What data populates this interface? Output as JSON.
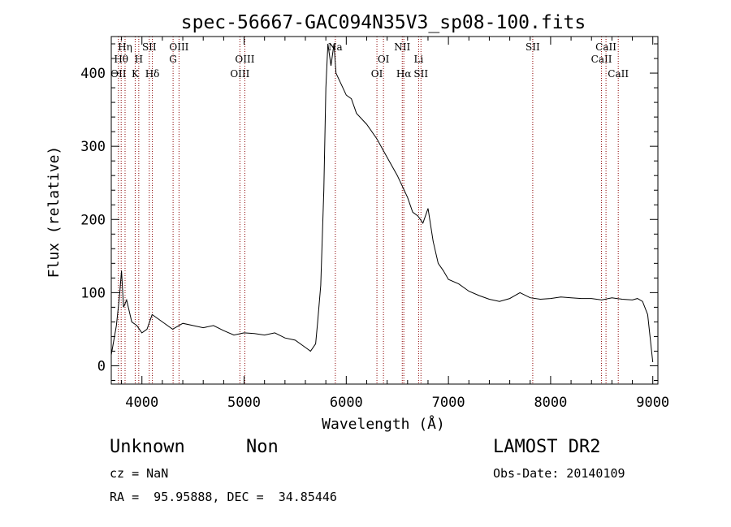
{
  "chart_data": {
    "type": "line",
    "title": "spec-56667-GAC094N35V3_sp08-100.fits",
    "xlabel": "Wavelength (Å)",
    "ylabel": "Flux (relative)",
    "xlim": [
      3700,
      9050
    ],
    "ylim": [
      -25,
      450
    ],
    "xticks": [
      4000,
      5000,
      6000,
      7000,
      8000,
      9000
    ],
    "yticks": [
      0,
      100,
      200,
      300,
      400
    ],
    "grid": false,
    "line_color": "#000000",
    "marker_color": "#8b0000",
    "series": [
      {
        "x": [
          3700,
          3750,
          3780,
          3800,
          3820,
          3850,
          3900,
          3950,
          4000,
          4050,
          4100,
          4200,
          4300,
          4400,
          4500,
          4600,
          4700,
          4800,
          4900,
          5000,
          5100,
          5200,
          5300,
          5400,
          5500,
          5600,
          5650,
          5700,
          5720,
          5750,
          5780,
          5800,
          5820,
          5850,
          5880,
          5900,
          5950,
          6000,
          6050,
          6100,
          6200,
          6300,
          6400,
          6500,
          6550,
          6600,
          6650,
          6700,
          6750,
          6800,
          6850,
          6900,
          6950,
          7000,
          7100,
          7200,
          7300,
          7400,
          7500,
          7600,
          7700,
          7800,
          7900,
          8000,
          8100,
          8200,
          8300,
          8400,
          8500,
          8600,
          8700,
          8800,
          8850,
          8900,
          8950,
          9000
        ],
        "y": [
          15,
          55,
          95,
          130,
          80,
          90,
          60,
          55,
          45,
          50,
          70,
          60,
          50,
          58,
          55,
          52,
          55,
          48,
          42,
          45,
          44,
          42,
          45,
          38,
          35,
          25,
          20,
          30,
          60,
          110,
          240,
          380,
          440,
          410,
          440,
          400,
          385,
          370,
          365,
          345,
          330,
          310,
          285,
          260,
          245,
          230,
          210,
          205,
          195,
          215,
          170,
          140,
          130,
          118,
          112,
          102,
          96,
          91,
          88,
          92,
          100,
          93,
          91,
          92,
          94,
          93,
          92,
          92,
          90,
          93,
          91,
          90,
          92,
          88,
          70,
          5
        ]
      }
    ],
    "line_markers": [
      {
        "x": 3770,
        "label": "OII",
        "row": 3
      },
      {
        "x": 3797,
        "label": "Hθ",
        "row": 2
      },
      {
        "x": 3835,
        "label": "Hη",
        "row": 1
      },
      {
        "x": 3934,
        "label": "K",
        "row": 3
      },
      {
        "x": 3969,
        "label": "H",
        "row": 2
      },
      {
        "x": 4072,
        "label": "SII",
        "row": 1
      },
      {
        "x": 4102,
        "label": "Hδ",
        "row": 3
      },
      {
        "x": 4305,
        "label": "G",
        "row": 2
      },
      {
        "x": 4363,
        "label": "OIII",
        "row": 1
      },
      {
        "x": 4959,
        "label": "OIII",
        "row": 3
      },
      {
        "x": 5007,
        "label": "OIII",
        "row": 2
      },
      {
        "x": 5893,
        "label": "Na",
        "row": 1
      },
      {
        "x": 6300,
        "label": "OI",
        "row": 3
      },
      {
        "x": 6364,
        "label": "OI",
        "row": 2
      },
      {
        "x": 6548,
        "label": "NII",
        "row": 1
      },
      {
        "x": 6563,
        "label": "Hα",
        "row": 3
      },
      {
        "x": 6708,
        "label": "Li",
        "row": 2
      },
      {
        "x": 6731,
        "label": "SII",
        "row": 3
      },
      {
        "x": 7825,
        "label": "SII",
        "row": 1
      },
      {
        "x": 8498,
        "label": "CaII",
        "row": 2
      },
      {
        "x": 8542,
        "label": "CaII",
        "row": 1
      },
      {
        "x": 8662,
        "label": "CaII",
        "row": 3
      }
    ]
  },
  "info": {
    "object_class": "Unknown",
    "subclass": "Non",
    "cz": "cz = NaN",
    "coords": "RA =  95.95888, DEC =  34.85446",
    "survey": "LAMOST DR2",
    "obs_date": "Obs-Date: 20140109"
  }
}
